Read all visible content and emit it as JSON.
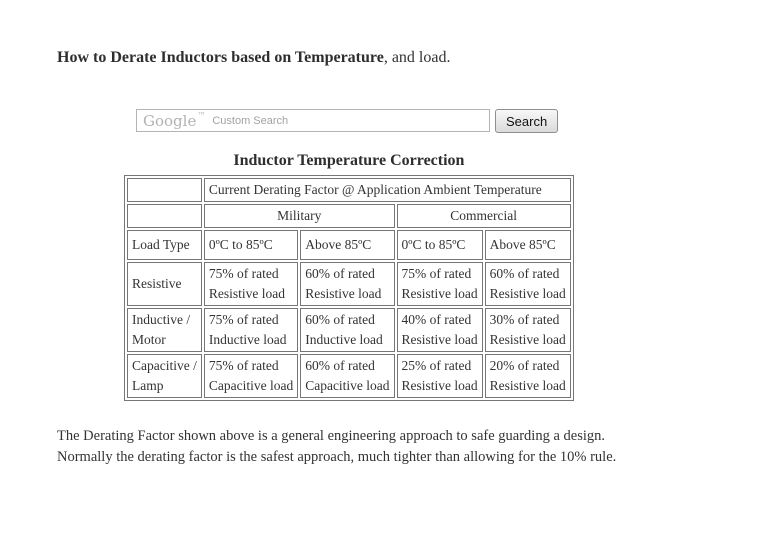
{
  "page": {
    "heading_bold": "How to Derate Inductors based on Temperature",
    "heading_rest": ", and load.",
    "footer": [
      "The Derating Factor shown above is a general engineering approach to safe guarding a design.",
      "Normally the derating factor is the safest approach, much tighter than allowing for the 10% rule."
    ]
  },
  "search": {
    "brand": "Google",
    "trademark": "™",
    "hint": "Custom Search",
    "value": "",
    "button": "Search"
  },
  "table": {
    "title": "Inductor Temperature Correction",
    "span_header": "Current Derating Factor @ Application Ambient Temperature",
    "groups": [
      "Military",
      "Commercial"
    ],
    "col_headers": [
      "Load Type",
      "0ºC to 85ºC",
      "Above 85ºC",
      "0ºC to 85ºC",
      "Above 85ºC"
    ],
    "rows": [
      {
        "load": [
          "Resistive",
          ""
        ],
        "cells": [
          [
            "75% of rated",
            "Resistive load"
          ],
          [
            "60% of rated",
            "Resistive load"
          ],
          [
            "75% of rated",
            "Resistive load"
          ],
          [
            "60% of rated",
            "Resistive load"
          ]
        ]
      },
      {
        "load": [
          "Inductive /",
          "Motor"
        ],
        "cells": [
          [
            "75% of rated",
            "Inductive load"
          ],
          [
            "60% of rated",
            "Inductive load"
          ],
          [
            "40% of rated",
            "Resistive load"
          ],
          [
            "30% of rated",
            "Resistive load"
          ]
        ]
      },
      {
        "load": [
          "Capacitive /",
          "Lamp"
        ],
        "cells": [
          [
            "75% of rated",
            "Capacitive load"
          ],
          [
            "60% of rated",
            "Capacitive load"
          ],
          [
            "25% of rated",
            "Resistive load"
          ],
          [
            "20% of rated",
            "Resistive load"
          ]
        ]
      }
    ]
  },
  "colors": {
    "table_border": "#767676",
    "body_text": "#333333",
    "watermark_gray": "#b2b2b2"
  }
}
